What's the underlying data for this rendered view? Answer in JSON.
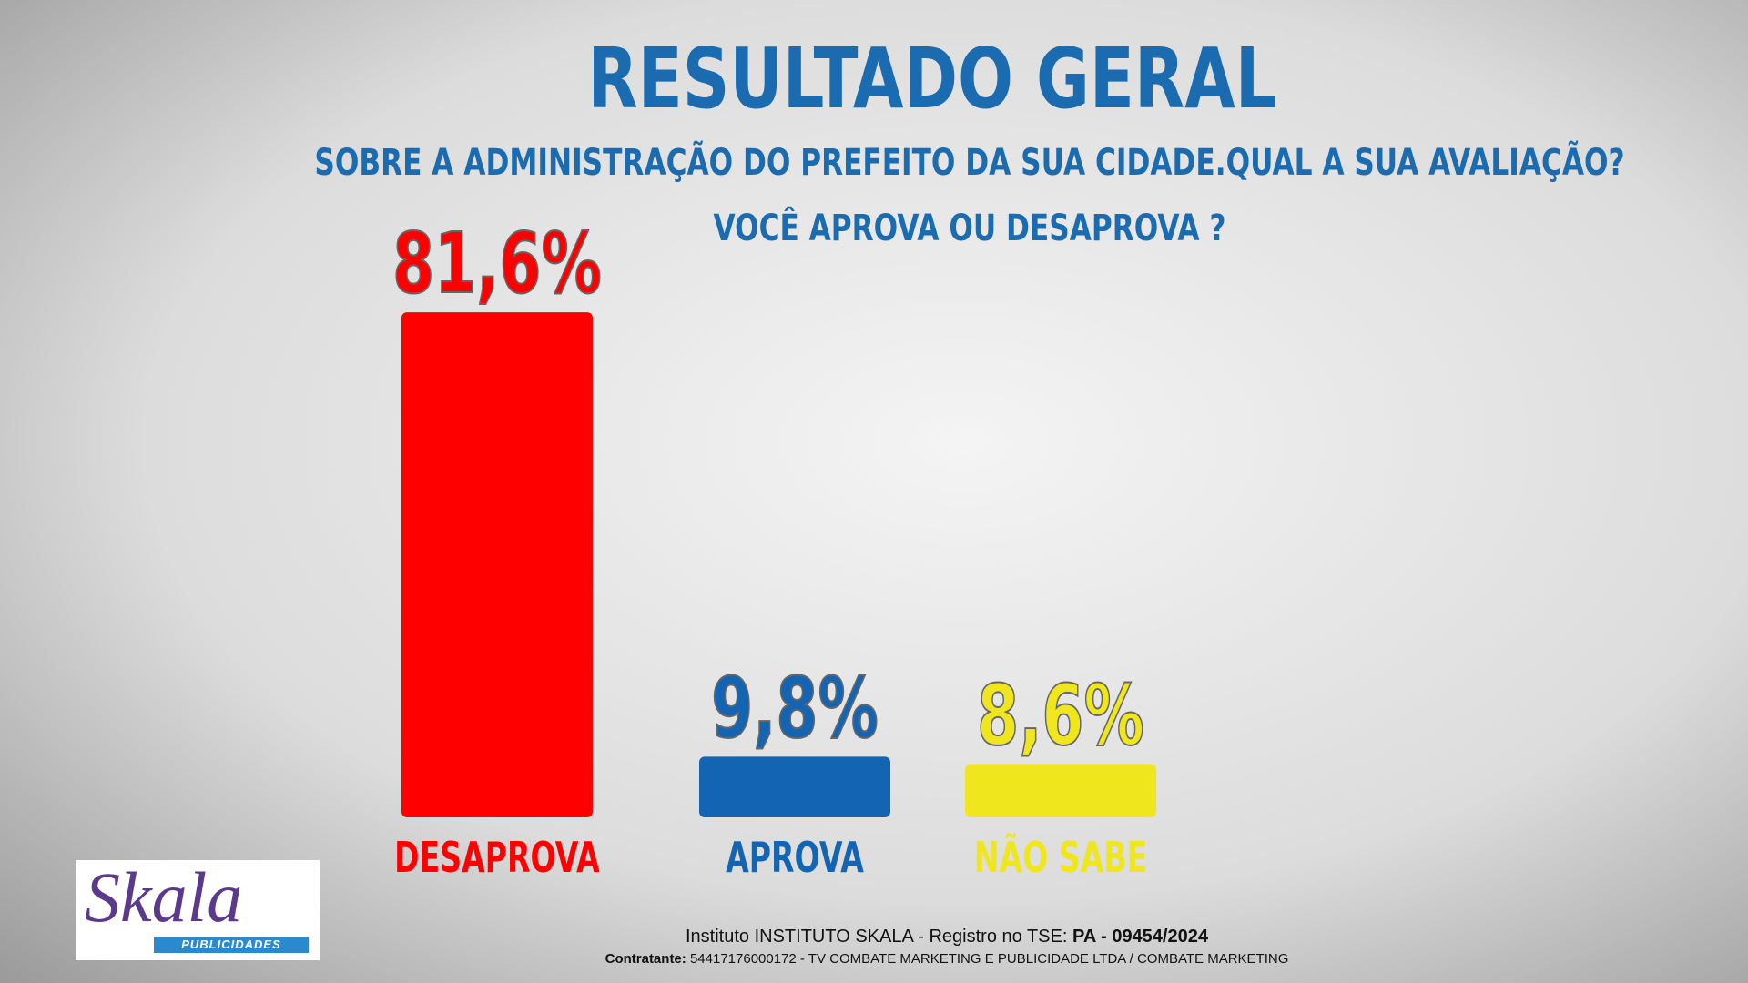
{
  "chart_data": {
    "type": "bar",
    "title": "RESULTADO GERAL",
    "subtitle": [
      "SOBRE A ADMINISTRAÇÃO DO PREFEITO DA SUA CIDADE.QUAL A SUA AVALIAÇÃO?",
      "VOCÊ APROVA OU DESAPROVA ?"
    ],
    "categories": [
      "DESAPROVA",
      "APROVA",
      "NÃO SABE"
    ],
    "values": [
      81.6,
      9.8,
      8.6
    ],
    "value_labels": [
      "81,6%",
      "9,8%",
      "8,6%"
    ],
    "colors": [
      "#ff0000",
      "#1464b4",
      "#f0e61e"
    ]
  },
  "logo": {
    "name": "Skala",
    "tagline": "PUBLICIDADES"
  },
  "footer": {
    "registry_prefix": "Instituto INSTITUTO SKALA - Registro no TSE:",
    "registry_number": "PA - 09454/2024",
    "contractor_label": "Contratante:",
    "contractor_text": "54417176000172 - TV COMBATE MARKETING E PUBLICIDADE LTDA / COMBATE MARKETING"
  }
}
